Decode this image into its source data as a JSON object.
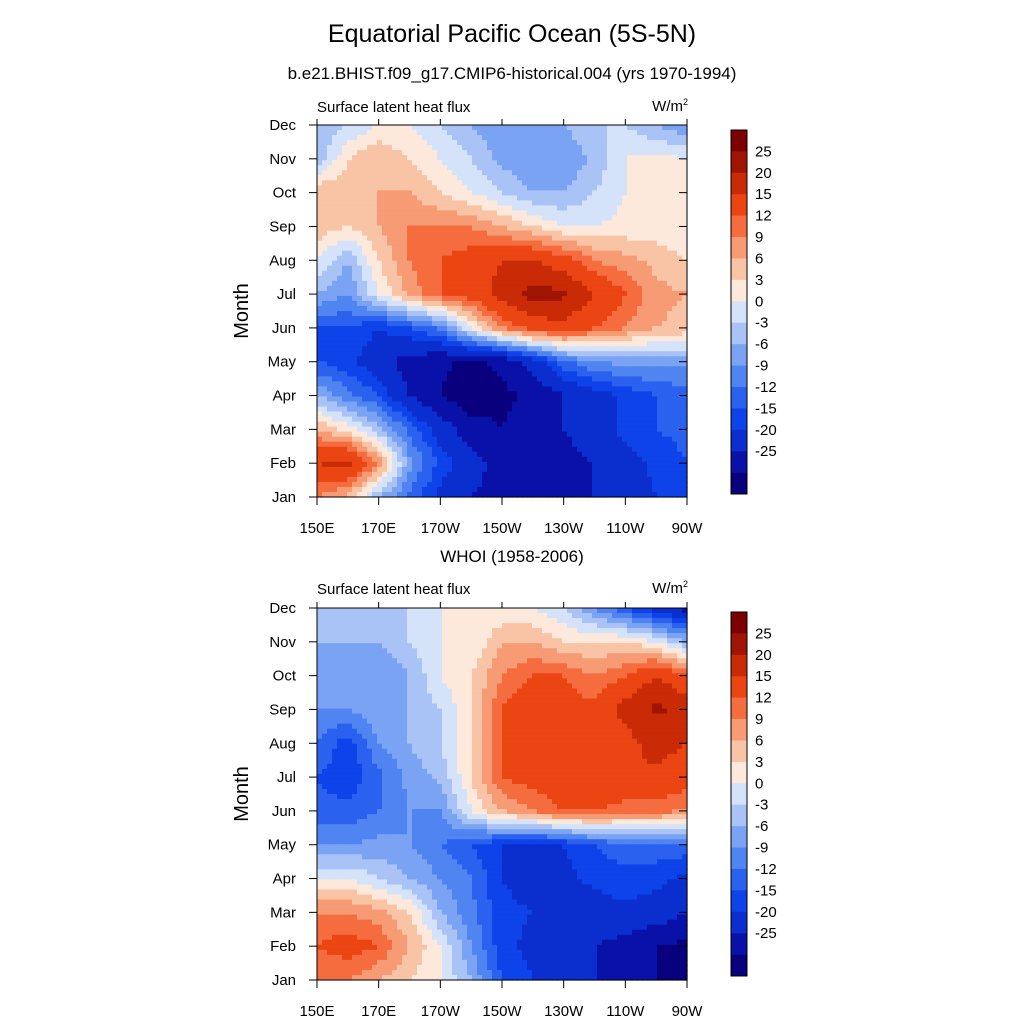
{
  "figure": {
    "title": "Equatorial Pacific Ocean (5S-5N)",
    "subtitle": "b.e21.BHIST.f09_g17.CMIP6-historical.004 (yrs 1970-1994)",
    "second_title": "WHOI (1958-2006)"
  },
  "chart_data": [
    {
      "type": "heatmap",
      "title": "b.e21.BHIST.f09_g17.CMIP6-historical.004 (yrs 1970-1994)",
      "left_label": "Surface latent heat flux",
      "unit_base": "W/m",
      "unit_exp": "2",
      "ylabel": "Month",
      "xlabel": "",
      "x_ticks": [
        "150E",
        "170E",
        "170W",
        "150W",
        "130W",
        "110W",
        "90W"
      ],
      "y_ticks": [
        "Jan",
        "Feb",
        "Mar",
        "Apr",
        "May",
        "Jun",
        "Jul",
        "Aug",
        "Sep",
        "Oct",
        "Nov",
        "Dec"
      ],
      "x_values": [
        150,
        160,
        170,
        180,
        190,
        200,
        210,
        220,
        230,
        240,
        250,
        260,
        270
      ],
      "x_value_units": "degrees east longitude",
      "values": [
        [
          12,
          8,
          -3,
          -10,
          -16,
          -20,
          -22,
          -22,
          -22,
          -20,
          -17,
          -15,
          -13
        ],
        [
          20,
          22,
          12,
          -5,
          -13,
          -18,
          -22,
          -25,
          -22,
          -20,
          -17,
          -14,
          -12
        ],
        [
          9,
          5,
          -2,
          -10,
          -17,
          -23,
          -25,
          -22,
          -20,
          -17,
          -14,
          -12,
          -11
        ],
        [
          -3,
          -8,
          -12,
          -20,
          -25,
          -28,
          -26,
          -24,
          -20,
          -17,
          -14,
          -12,
          -10
        ],
        [
          -12,
          -14,
          -18,
          -22,
          -24,
          -26,
          -24,
          -18,
          -10,
          -6,
          -5,
          -5,
          -5
        ],
        [
          -12,
          -12,
          -15,
          -12,
          -8,
          3,
          12,
          17,
          18,
          15,
          12,
          9,
          8
        ],
        [
          -3,
          -6,
          3,
          10,
          15,
          17,
          22,
          27,
          26,
          20,
          15,
          10,
          9
        ],
        [
          3,
          -3,
          6,
          12,
          15,
          17,
          20,
          20,
          17,
          12,
          10,
          8,
          6
        ],
        [
          8,
          6,
          9,
          12,
          12,
          12,
          9,
          6,
          3,
          3,
          4,
          4,
          3
        ],
        [
          9,
          8,
          9,
          9,
          6,
          3,
          0,
          -3,
          -3,
          0,
          3,
          4,
          5
        ],
        [
          -2,
          6,
          9,
          6,
          3,
          0,
          -4,
          -6,
          -6,
          -2,
          3,
          4,
          3
        ],
        [
          -3,
          0,
          3,
          3,
          0,
          -3,
          -6,
          -6,
          -3,
          0,
          0,
          -3,
          -6
        ]
      ]
    },
    {
      "type": "heatmap",
      "title": "WHOI (1958-2006)",
      "left_label": "Surface latent heat flux",
      "unit_base": "W/m",
      "unit_exp": "2",
      "ylabel": "Month",
      "xlabel": "",
      "x_ticks": [
        "150E",
        "170E",
        "170W",
        "150W",
        "130W",
        "110W",
        "90W"
      ],
      "y_ticks": [
        "Jan",
        "Feb",
        "Mar",
        "Apr",
        "May",
        "Jun",
        "Jul",
        "Aug",
        "Sep",
        "Oct",
        "Nov",
        "Dec"
      ],
      "x_values": [
        150,
        160,
        170,
        180,
        190,
        200,
        210,
        220,
        230,
        240,
        250,
        260,
        270
      ],
      "x_value_units": "degrees east longitude",
      "values": [
        [
          12,
          12,
          9,
          6,
          3,
          -3,
          -12,
          -15,
          -18,
          -20,
          -22,
          -25,
          -28
        ],
        [
          15,
          17,
          15,
          9,
          3,
          -6,
          -14,
          -16,
          -17,
          -20,
          -22,
          -25,
          -26
        ],
        [
          12,
          12,
          10,
          6,
          -3,
          -8,
          -14,
          -15,
          -18,
          -17,
          -16,
          -17,
          -20
        ],
        [
          3,
          3,
          0,
          -3,
          -6,
          -9,
          -15,
          -17,
          -16,
          -14,
          -13,
          -14,
          -16
        ],
        [
          -6,
          -6,
          -5,
          -6,
          -9,
          -12,
          -15,
          -17,
          -15,
          -12,
          -10,
          -10,
          -10
        ],
        [
          -11,
          -11,
          -9,
          -6,
          -6,
          3,
          9,
          12,
          15,
          15,
          13,
          13,
          12
        ],
        [
          -12,
          -14,
          -10,
          -5,
          -2,
          6,
          15,
          17,
          18,
          20,
          20,
          19,
          17
        ],
        [
          -9,
          -14,
          -6,
          -3,
          0,
          6,
          15,
          18,
          20,
          17,
          18,
          22,
          20
        ],
        [
          -6,
          -6,
          -3,
          -3,
          0,
          6,
          15,
          20,
          17,
          16,
          22,
          26,
          24
        ],
        [
          -3,
          -6,
          -6,
          -3,
          3,
          6,
          12,
          15,
          15,
          12,
          15,
          20,
          15
        ],
        [
          -3,
          -3,
          -3,
          0,
          3,
          3,
          9,
          9,
          6,
          6,
          6,
          3,
          -3
        ],
        [
          -3,
          -3,
          0,
          0,
          3,
          3,
          3,
          3,
          0,
          -6,
          -12,
          -17,
          -22
        ]
      ]
    }
  ],
  "colorbar": {
    "labels": [
      "25",
      "20",
      "15",
      "12",
      "9",
      "6",
      "3",
      "0",
      "-3",
      "-6",
      "-9",
      "-12",
      "-15",
      "-20",
      "-25"
    ],
    "levels": [
      -25,
      -20,
      -15,
      -12,
      -9,
      -6,
      -3,
      0,
      3,
      6,
      9,
      12,
      15,
      20,
      25
    ],
    "colors": [
      "#08007c",
      "#0a11a8",
      "#0b2ecf",
      "#0d43e8",
      "#2a62ef",
      "#4f84f1",
      "#7aa4f3",
      "#a9c3f6",
      "#d5e3fa",
      "#fde9dc",
      "#f9c3a5",
      "#f79b74",
      "#f56c3f",
      "#ea4512",
      "#c82b06",
      "#a01403",
      "#7d0000"
    ]
  }
}
